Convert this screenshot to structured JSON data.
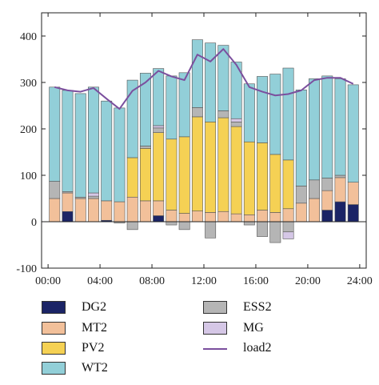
{
  "chart_data": {
    "type": "bar",
    "subtype": "stacked-bar-with-line",
    "title": "",
    "xlabel": "",
    "ylabel": "",
    "ylim": [
      -100,
      450
    ],
    "yticks": [
      -100,
      0,
      100,
      200,
      300,
      400
    ],
    "yticklabels": [
      "-100",
      "0",
      "100",
      "200",
      "300",
      "400"
    ],
    "xticklabels": [
      "00:00",
      "04:00",
      "08:00",
      "12:00",
      "16:00",
      "20:00",
      "24:00"
    ],
    "hours": [
      1,
      2,
      3,
      4,
      5,
      6,
      7,
      8,
      9,
      10,
      11,
      12,
      13,
      14,
      15,
      16,
      17,
      18,
      19,
      20,
      21,
      22,
      23,
      24
    ],
    "series": [
      {
        "name": "DG2",
        "color": "#1b2466",
        "values": [
          0,
          22,
          0,
          0,
          3,
          0,
          0,
          0,
          13,
          0,
          0,
          0,
          0,
          0,
          0,
          0,
          0,
          0,
          0,
          0,
          0,
          25,
          43,
          37
        ]
      },
      {
        "name": "MT2",
        "color": "#f2c09a",
        "values": [
          50,
          40,
          50,
          50,
          42,
          43,
          53,
          45,
          32,
          25,
          18,
          23,
          20,
          22,
          17,
          15,
          25,
          20,
          28,
          40,
          50,
          42,
          52,
          48
        ]
      },
      {
        "name": "PV2",
        "color": "#f5d154",
        "values": [
          0,
          0,
          0,
          0,
          0,
          0,
          85,
          113,
          147,
          153,
          165,
          203,
          195,
          202,
          188,
          157,
          145,
          125,
          105,
          0,
          0,
          0,
          0,
          0
        ]
      },
      {
        "name": "ESS2",
        "color": "#b5b5b5",
        "values": [
          37,
          3,
          3,
          5,
          0,
          -3,
          -17,
          5,
          10,
          -7,
          -17,
          20,
          -35,
          15,
          10,
          -7,
          -32,
          -45,
          -22,
          37,
          40,
          27,
          5,
          0
        ]
      },
      {
        "name": "MG",
        "color": "#d5c7e6",
        "values": [
          0,
          0,
          0,
          7,
          0,
          0,
          0,
          0,
          5,
          0,
          0,
          0,
          0,
          0,
          7,
          0,
          0,
          0,
          -15,
          0,
          0,
          0,
          0,
          0
        ]
      },
      {
        "name": "WT2",
        "color": "#92cfd8",
        "values": [
          203,
          218,
          223,
          228,
          215,
          202,
          167,
          157,
          123,
          136,
          138,
          146,
          170,
          141,
          122,
          125,
          143,
          173,
          198,
          207,
          218,
          220,
          208,
          210
        ]
      }
    ],
    "line": {
      "name": "load2",
      "color": "#7b4f9e",
      "values": [
        290,
        283,
        280,
        288,
        265,
        243,
        282,
        300,
        325,
        313,
        305,
        360,
        345,
        372,
        338,
        290,
        280,
        272,
        275,
        283,
        305,
        310,
        310,
        297
      ]
    },
    "legend": {
      "placement": "bottom",
      "entries": [
        {
          "label": "DG2",
          "type": "patch",
          "color": "#1b2466"
        },
        {
          "label": "MT2",
          "type": "patch",
          "color": "#f2c09a"
        },
        {
          "label": "PV2",
          "type": "patch",
          "color": "#f5d154"
        },
        {
          "label": "WT2",
          "type": "patch",
          "color": "#92cfd8"
        },
        {
          "label": "ESS2",
          "type": "patch",
          "color": "#b5b5b5"
        },
        {
          "label": "MG",
          "type": "patch",
          "color": "#d5c7e6"
        },
        {
          "label": "load2",
          "type": "line",
          "color": "#7b4f9e"
        }
      ]
    },
    "grid": false
  }
}
